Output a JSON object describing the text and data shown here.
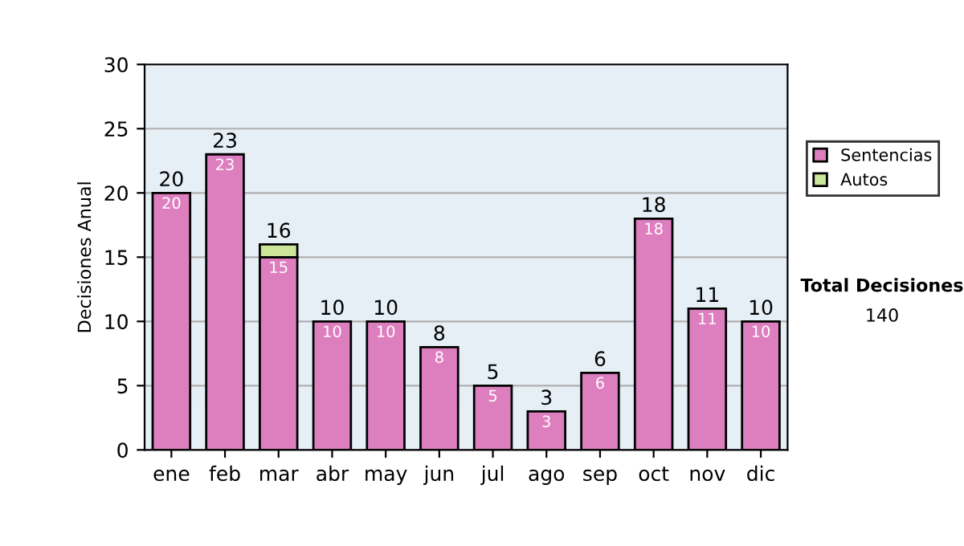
{
  "chart_data": {
    "type": "bar",
    "stacked": true,
    "ylabel": "Decisiones Anual",
    "categories": [
      "ene",
      "feb",
      "mar",
      "abr",
      "may",
      "jun",
      "jul",
      "ago",
      "sep",
      "oct",
      "nov",
      "dic"
    ],
    "series": [
      {
        "name": "Sentencias",
        "color": "#dd7fbf",
        "values": [
          20,
          23,
          15,
          10,
          10,
          8,
          5,
          3,
          6,
          18,
          11,
          10
        ],
        "value_labels": [
          "20",
          "23",
          "15",
          "10",
          "10",
          "8",
          "5",
          "3",
          "6",
          "18",
          "11",
          "10"
        ]
      },
      {
        "name": "Autos",
        "color": "#cce699",
        "values": [
          null,
          null,
          1,
          null,
          null,
          null,
          null,
          null,
          null,
          null,
          null,
          null
        ],
        "value_labels": [
          null,
          null,
          null,
          null,
          null,
          null,
          null,
          null,
          null,
          null,
          null,
          null
        ]
      }
    ],
    "totals": [
      "20",
      "23",
      "16",
      "10",
      "10",
      "8",
      "5",
      "3",
      "6",
      "18",
      "11",
      "10"
    ],
    "ylim": [
      0,
      30
    ],
    "yticks": [
      0,
      5,
      10,
      15,
      20,
      25,
      30
    ],
    "grid": "y",
    "legend": "right",
    "annotations": [
      "Total Decisiones",
      "140"
    ]
  }
}
